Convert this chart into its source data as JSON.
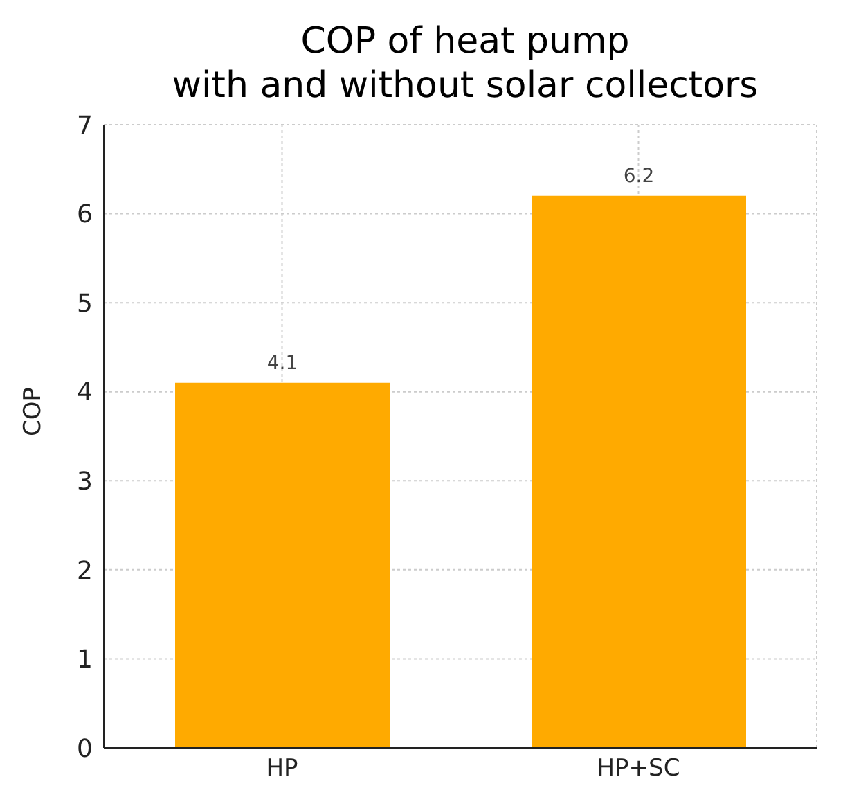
{
  "chart_data": {
    "type": "bar",
    "title": "COP of heat pump\nwith and without solar collectors",
    "ylabel": "COP",
    "categories": [
      "HP",
      "HP+SC"
    ],
    "values": [
      4.1,
      6.2
    ],
    "color": "#ffaa00",
    "ylim": [
      0,
      7
    ],
    "yticks": [
      0,
      1,
      2,
      3,
      4,
      5,
      6,
      7
    ],
    "grid": true,
    "data_labels": true
  }
}
